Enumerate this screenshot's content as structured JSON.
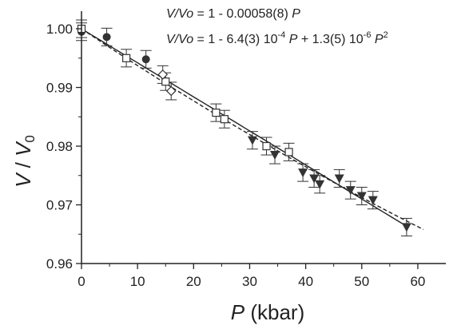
{
  "chart_data": {
    "type": "scatter",
    "xlabel": {
      "italic": "P",
      "rest": " (kbar)"
    },
    "ylabel": {
      "italic_a": "V",
      "mid": " / ",
      "italic_b": "V",
      "sub": "0"
    },
    "xlim": [
      0,
      65
    ],
    "ylim": [
      0.96,
      1.003
    ],
    "x_ticks": [
      "0",
      "10",
      "20",
      "30",
      "40",
      "50",
      "60"
    ],
    "y_ticks": [
      "0.96",
      "0.97",
      "0.98",
      "0.99",
      "1.00"
    ],
    "grid": false,
    "equations": {
      "linear": {
        "lhs": "V/Vo",
        "rest": " = 1 - 0.00058(8) ",
        "var": "P"
      },
      "quadratic": {
        "lhs": "V/Vo",
        "p1": " = 1 - 6.4(3) 10",
        "e1": "-4",
        "var1": "P",
        "p2": " + 1.3(5) 10",
        "e2": "-6",
        "var2": "P",
        "e3": "2"
      }
    },
    "fits": [
      {
        "style": "solid",
        "formula": "1 - 0.00058*P",
        "x": [
          0,
          58
        ],
        "y": [
          1.0,
          0.96636
        ]
      },
      {
        "style": "dashed",
        "formula": "1 - 6.4e-4*P + 1.3e-6*P^2",
        "x": [
          0,
          61
        ],
        "y": [
          1.0,
          0.9658
        ]
      }
    ],
    "series": [
      {
        "marker": "filled-circle",
        "x": [
          0,
          4.5,
          11.5
        ],
        "y": [
          0.9995,
          0.9986,
          0.9948
        ],
        "err": [
          0.0015,
          0.0015,
          0.0015
        ]
      },
      {
        "marker": "open-square",
        "x": [
          0,
          8,
          15,
          24,
          25.5,
          33,
          37
        ],
        "y": [
          1.0,
          0.995,
          0.991,
          0.9857,
          0.9846,
          0.98,
          0.979
        ],
        "err": [
          0.0015,
          0.0015,
          0.0015,
          0.0015,
          0.0015,
          0.0015,
          0.0015
        ]
      },
      {
        "marker": "open-diamond",
        "x": [
          14.5,
          16
        ],
        "y": [
          0.9922,
          0.9894
        ],
        "err": [
          0.0015,
          0.0015
        ]
      },
      {
        "marker": "filled-triangle-down",
        "x": [
          30.5,
          34.5,
          39.5,
          41.5,
          42.5,
          46,
          48,
          50,
          52,
          58
        ],
        "y": [
          0.981,
          0.9785,
          0.9755,
          0.9745,
          0.9735,
          0.9745,
          0.9725,
          0.9715,
          0.9708,
          0.9662
        ],
        "err": [
          0.0015,
          0.0015,
          0.0015,
          0.0015,
          0.0015,
          0.0015,
          0.0015,
          0.0015,
          0.0015,
          0.0015
        ]
      }
    ]
  }
}
